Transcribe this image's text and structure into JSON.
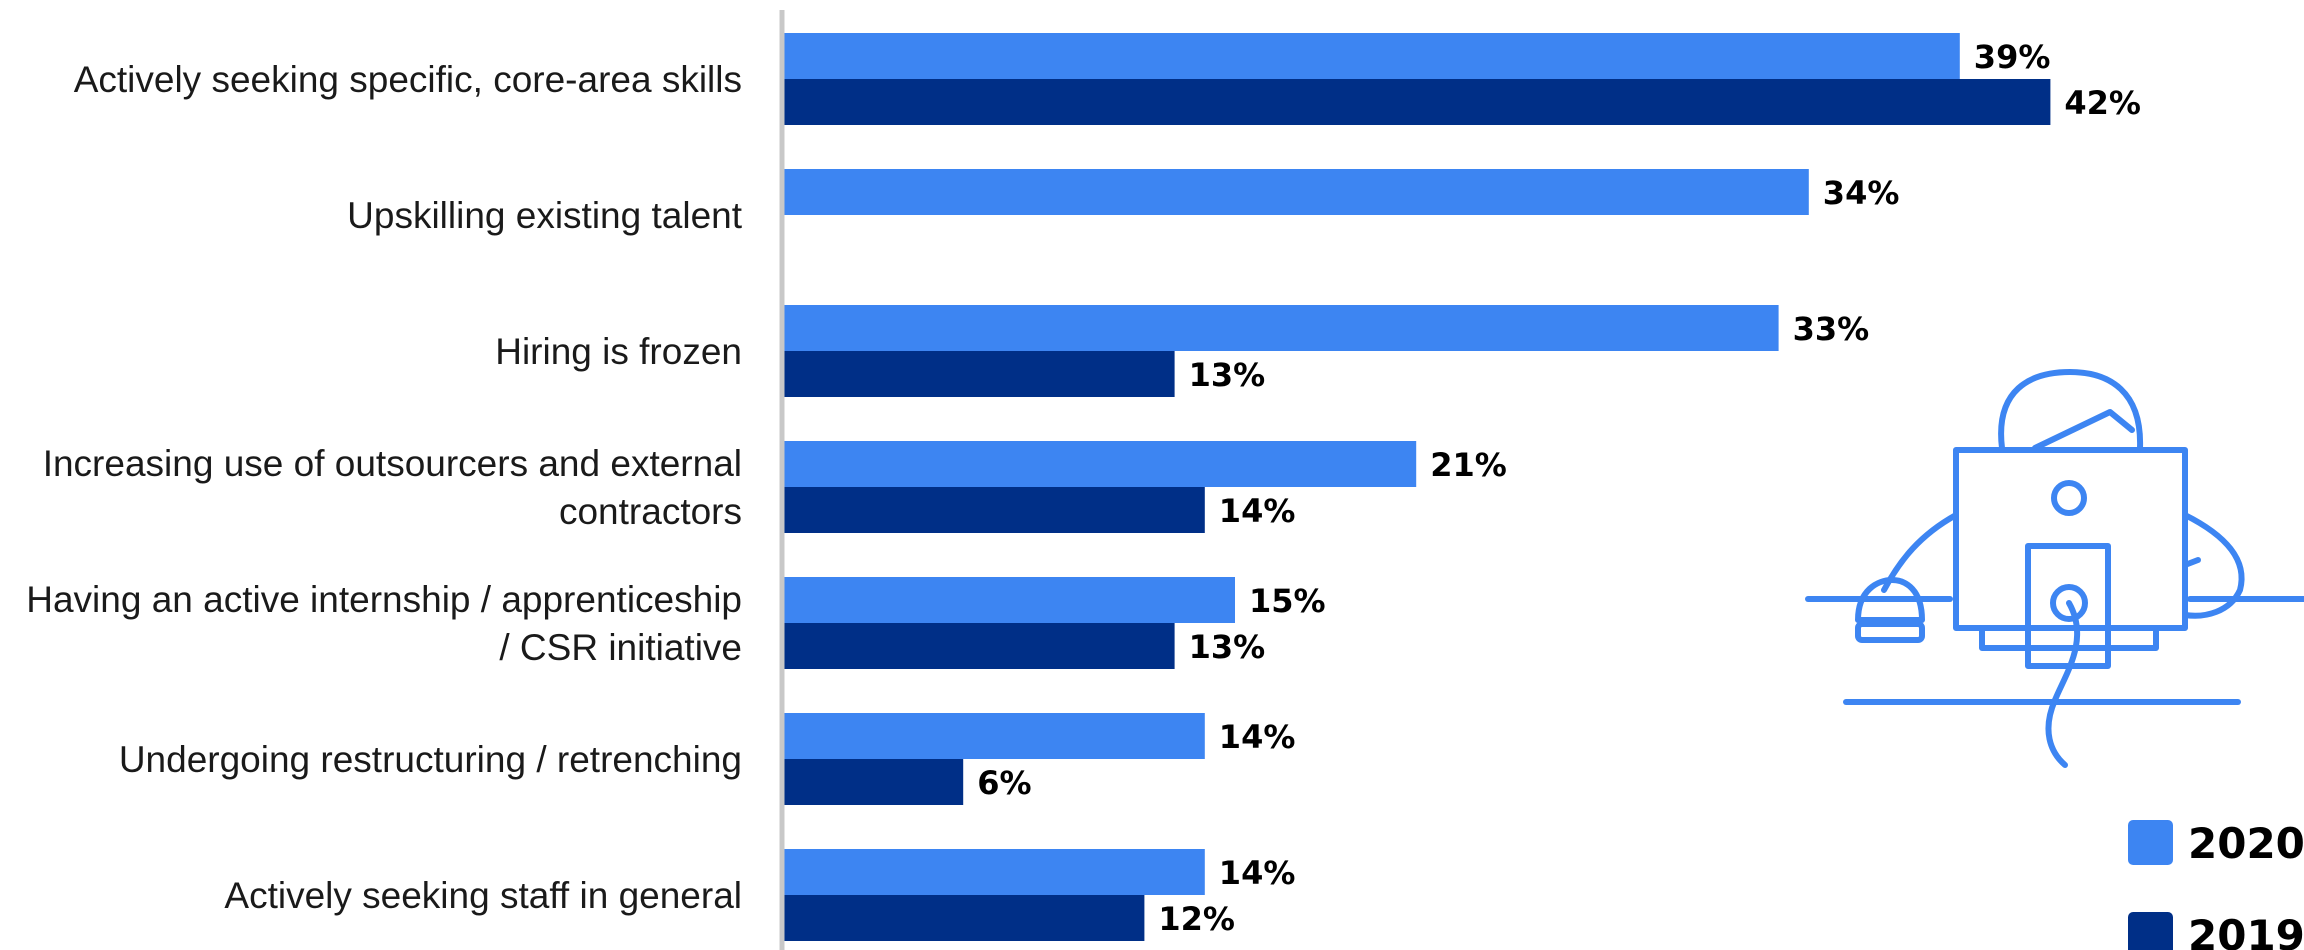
{
  "chart_data": {
    "type": "bar",
    "orientation": "horizontal",
    "categories": [
      [
        "Actively seeking specific, core-area skills"
      ],
      [
        "Upskilling existing talent"
      ],
      [
        "Hiring is frozen"
      ],
      [
        "Increasing use of outsourcers and external",
        "contractors"
      ],
      [
        "Having an active internship / apprenticeship",
        "/ CSR initiative"
      ],
      [
        "Undergoing restructuring / retrenching"
      ],
      [
        "Actively seeking staff in general"
      ]
    ],
    "series": [
      {
        "name": "2020",
        "color": "#3d85f2",
        "values": [
          39,
          34,
          33,
          21,
          15,
          14,
          14
        ]
      },
      {
        "name": "2019",
        "color": "#002f87",
        "values": [
          42,
          null,
          13,
          14,
          13,
          6,
          12
        ]
      }
    ],
    "value_suffix": "%",
    "legend_position": "bottom-right",
    "grid": false
  },
  "illustration": {
    "icon": "person-at-computer-icon",
    "color": "#3d85f2"
  },
  "axis_color": "#c8c8c8"
}
